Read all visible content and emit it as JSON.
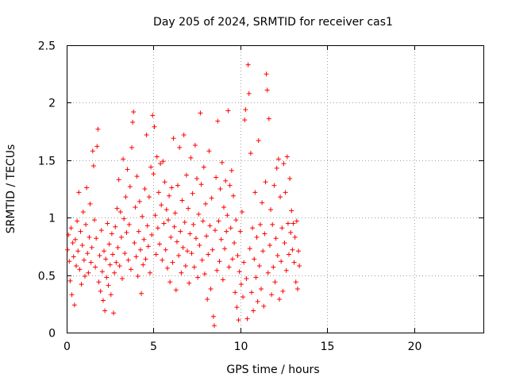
{
  "chart_data": {
    "type": "scatter",
    "title": "Day 205 of 2024, SRMTID for receiver cas1",
    "xlabel": "GPS time / hours",
    "ylabel": "SRMTID / TECUs",
    "xlim": [
      0,
      24
    ],
    "ylim": [
      0,
      2.5
    ],
    "xticks": [
      0,
      5,
      10,
      15,
      20
    ],
    "xtick_labels": [
      "0",
      "5",
      "10",
      "15",
      "20"
    ],
    "yticks": [
      0,
      0.5,
      1,
      1.5,
      2,
      2.5
    ],
    "ytick_labels": [
      "0",
      "0.5",
      "1",
      "1.5",
      "2",
      "2.5"
    ],
    "grid": true,
    "marker": "+",
    "series": [
      {
        "name": "cas1",
        "color": "#ff0000",
        "points": [
          [
            0.05,
            0.72
          ],
          [
            0.1,
            0.85
          ],
          [
            0.15,
            0.62
          ],
          [
            0.2,
            0.45
          ],
          [
            0.25,
            0.91
          ],
          [
            0.3,
            0.33
          ],
          [
            0.35,
            0.78
          ],
          [
            0.4,
            0.66
          ],
          [
            0.45,
            0.24
          ],
          [
            0.5,
            0.81
          ],
          [
            0.55,
            0.58
          ],
          [
            0.6,
            0.97
          ],
          [
            0.65,
            0.71
          ],
          [
            0.7,
            1.22
          ],
          [
            0.75,
            0.55
          ],
          [
            0.8,
            0.88
          ],
          [
            0.85,
            0.42
          ],
          [
            0.9,
            0.76
          ],
          [
            0.95,
            1.05
          ],
          [
            1.0,
            0.63
          ],
          [
            1.05,
            0.49
          ],
          [
            1.1,
            0.94
          ],
          [
            1.15,
            1.26
          ],
          [
            1.2,
            0.69
          ],
          [
            1.25,
            0.52
          ],
          [
            1.3,
            0.83
          ],
          [
            1.35,
            1.12
          ],
          [
            1.4,
            0.61
          ],
          [
            1.45,
            0.74
          ],
          [
            1.5,
            1.58
          ],
          [
            1.55,
            1.45
          ],
          [
            1.6,
            0.98
          ],
          [
            1.65,
            0.57
          ],
          [
            1.7,
            0.82
          ],
          [
            1.75,
            1.62
          ],
          [
            1.8,
            1.77
          ],
          [
            1.85,
            0.44
          ],
          [
            1.9,
            0.67
          ],
          [
            1.95,
            0.36
          ],
          [
            2.0,
            0.89
          ],
          [
            2.05,
            0.53
          ],
          [
            2.1,
            0.28
          ],
          [
            2.15,
            0.71
          ],
          [
            2.2,
            0.19
          ],
          [
            2.25,
            0.64
          ],
          [
            2.3,
            0.48
          ],
          [
            2.35,
            0.95
          ],
          [
            2.4,
            0.41
          ],
          [
            2.45,
            0.77
          ],
          [
            2.5,
            0.59
          ],
          [
            2.55,
            0.33
          ],
          [
            2.6,
            0.86
          ],
          [
            2.65,
            0.68
          ],
          [
            2.7,
            0.17
          ],
          [
            2.75,
            0.52
          ],
          [
            2.8,
            0.92
          ],
          [
            2.85,
            0.61
          ],
          [
            2.9,
            1.08
          ],
          [
            2.95,
            0.74
          ],
          [
            3.0,
            1.33
          ],
          [
            3.05,
            0.58
          ],
          [
            3.1,
            1.05
          ],
          [
            3.15,
            0.83
          ],
          [
            3.2,
            0.47
          ],
          [
            3.25,
            1.51
          ],
          [
            3.3,
            0.99
          ],
          [
            3.35,
            0.69
          ],
          [
            3.4,
            1.18
          ],
          [
            3.45,
            0.87
          ],
          [
            3.5,
            1.42
          ],
          [
            3.55,
            0.63
          ],
          [
            3.6,
            0.94
          ],
          [
            3.65,
            1.27
          ],
          [
            3.7,
            0.55
          ],
          [
            3.75,
            1.61
          ],
          [
            3.8,
            1.83
          ],
          [
            3.85,
            1.92
          ],
          [
            3.9,
            0.78
          ],
          [
            3.95,
            1.09
          ],
          [
            4.0,
            0.66
          ],
          [
            4.05,
            1.36
          ],
          [
            4.1,
            0.49
          ],
          [
            4.15,
            0.88
          ],
          [
            4.2,
            1.14
          ],
          [
            4.25,
            0.72
          ],
          [
            4.3,
            0.34
          ],
          [
            4.35,
            1.01
          ],
          [
            4.4,
            0.59
          ],
          [
            4.45,
            0.81
          ],
          [
            4.5,
            1.25
          ],
          [
            4.55,
            0.64
          ],
          [
            4.6,
            1.72
          ],
          [
            4.65,
            0.93
          ],
          [
            4.7,
            0.75
          ],
          [
            4.75,
            1.18
          ],
          [
            4.8,
            0.52
          ],
          [
            4.85,
            1.44
          ],
          [
            4.9,
            0.85
          ],
          [
            4.95,
            1.89
          ],
          [
            5.0,
            1.38
          ],
          [
            5.05,
            1.79
          ],
          [
            5.1,
            1.02
          ],
          [
            5.15,
            0.68
          ],
          [
            5.2,
            1.53
          ],
          [
            5.25,
            0.91
          ],
          [
            5.3,
            1.22
          ],
          [
            5.35,
            0.77
          ],
          [
            5.4,
            1.47
          ],
          [
            5.45,
            1.11
          ],
          [
            5.5,
            0.63
          ],
          [
            5.55,
            1.49
          ],
          [
            5.6,
            0.95
          ],
          [
            5.65,
            1.31
          ],
          [
            5.7,
            0.72
          ],
          [
            5.75,
            1.07
          ],
          [
            5.8,
            0.56
          ],
          [
            5.85,
            0.98
          ],
          [
            5.9,
            1.19
          ],
          [
            5.95,
            0.44
          ],
          [
            6.0,
            0.83
          ],
          [
            6.05,
            1.26
          ],
          [
            6.1,
            0.61
          ],
          [
            6.15,
            1.69
          ],
          [
            6.2,
            0.92
          ],
          [
            6.25,
            1.04
          ],
          [
            6.3,
            0.37
          ],
          [
            6.35,
            0.79
          ],
          [
            6.4,
            1.28
          ],
          [
            6.45,
            0.67
          ],
          [
            6.5,
            1.61
          ],
          [
            6.55,
            0.88
          ],
          [
            6.6,
            0.52
          ],
          [
            6.65,
            1.15
          ],
          [
            6.7,
            0.74
          ],
          [
            6.75,
            1.72
          ],
          [
            6.8,
            0.96
          ],
          [
            6.85,
            0.58
          ],
          [
            6.9,
            1.37
          ],
          [
            6.95,
            0.71
          ],
          [
            7.0,
            1.08
          ],
          [
            7.05,
            0.43
          ],
          [
            7.1,
            0.86
          ],
          [
            7.15,
            1.52
          ],
          [
            7.2,
            0.69
          ],
          [
            7.25,
            1.21
          ],
          [
            7.3,
            0.94
          ],
          [
            7.35,
            0.57
          ],
          [
            7.4,
            1.63
          ],
          [
            7.45,
            0.82
          ],
          [
            7.5,
            1.34
          ],
          [
            7.55,
            0.48
          ],
          [
            7.6,
            1.03
          ],
          [
            7.65,
            0.76
          ],
          [
            7.7,
            1.91
          ],
          [
            7.75,
            1.29
          ],
          [
            7.8,
            0.63
          ],
          [
            7.85,
            0.97
          ],
          [
            7.9,
            1.44
          ],
          [
            7.95,
            0.51
          ],
          [
            8.0,
            1.12
          ],
          [
            8.05,
            0.84
          ],
          [
            8.1,
            0.29
          ],
          [
            8.15,
            0.68
          ],
          [
            8.2,
            1.58
          ],
          [
            8.25,
            0.93
          ],
          [
            8.3,
            0.38
          ],
          [
            8.35,
            1.17
          ],
          [
            8.4,
            0.72
          ],
          [
            8.45,
            0.14
          ],
          [
            8.5,
            0.06
          ],
          [
            8.55,
            0.89
          ],
          [
            8.6,
            1.35
          ],
          [
            8.65,
            0.54
          ],
          [
            8.7,
            1.84
          ],
          [
            8.75,
            0.97
          ],
          [
            8.8,
            0.62
          ],
          [
            8.85,
            1.25
          ],
          [
            8.9,
            0.81
          ],
          [
            8.95,
            1.48
          ],
          [
            9.0,
            0.46
          ],
          [
            9.05,
            1.09
          ],
          [
            9.1,
            0.73
          ],
          [
            9.15,
            1.32
          ],
          [
            9.2,
            0.88
          ],
          [
            9.25,
            1.02
          ],
          [
            9.3,
            1.93
          ],
          [
            9.35,
            0.57
          ],
          [
            9.4,
            1.28
          ],
          [
            9.45,
            0.91
          ],
          [
            9.5,
            1.41
          ],
          [
            9.55,
            0.64
          ],
          [
            9.6,
            1.19
          ],
          [
            9.65,
            0.78
          ],
          [
            9.7,
            0.35
          ],
          [
            9.75,
            0.98
          ],
          [
            9.8,
            0.22
          ],
          [
            9.85,
            0.67
          ],
          [
            9.9,
            0.11
          ],
          [
            9.95,
            0.53
          ],
          [
            10.0,
            0.88
          ],
          [
            10.05,
            0.42
          ],
          [
            10.1,
            1.05
          ],
          [
            10.15,
            0.31
          ],
          [
            10.2,
            0.61
          ],
          [
            10.25,
            1.85
          ],
          [
            10.3,
            1.94
          ],
          [
            10.35,
            0.47
          ],
          [
            10.4,
            0.12
          ],
          [
            10.45,
            2.33
          ],
          [
            10.5,
            2.08
          ],
          [
            10.55,
            0.73
          ],
          [
            10.6,
            1.56
          ],
          [
            10.65,
            0.35
          ],
          [
            10.7,
            0.91
          ],
          [
            10.75,
            0.19
          ],
          [
            10.8,
            0.64
          ],
          [
            10.85,
            1.22
          ],
          [
            10.9,
            0.48
          ],
          [
            10.95,
            0.83
          ],
          [
            11.0,
            0.27
          ],
          [
            11.05,
            1.67
          ],
          [
            11.1,
            0.58
          ],
          [
            11.15,
            0.94
          ],
          [
            11.2,
            0.38
          ],
          [
            11.25,
            1.13
          ],
          [
            11.3,
            0.71
          ],
          [
            11.35,
            0.23
          ],
          [
            11.4,
            0.86
          ],
          [
            11.45,
            1.31
          ],
          [
            11.5,
            2.25
          ],
          [
            11.55,
            2.11
          ],
          [
            11.6,
            0.52
          ],
          [
            11.65,
            1.86
          ],
          [
            11.7,
            0.76
          ],
          [
            11.75,
            1.07
          ],
          [
            11.8,
            0.33
          ],
          [
            11.85,
            0.94
          ],
          [
            11.9,
            0.57
          ],
          [
            11.95,
            1.28
          ],
          [
            12.0,
            0.44
          ],
          [
            12.05,
            0.82
          ],
          [
            12.1,
            1.43
          ],
          [
            12.15,
            0.67
          ],
          [
            12.2,
            1.51
          ],
          [
            12.25,
            0.29
          ],
          [
            12.3,
            1.18
          ],
          [
            12.35,
            0.62
          ],
          [
            12.4,
            0.91
          ],
          [
            12.45,
            0.36
          ],
          [
            12.5,
            1.47
          ],
          [
            12.55,
            0.78
          ],
          [
            12.6,
            1.22
          ],
          [
            12.65,
            0.54
          ],
          [
            12.7,
            1.53
          ],
          [
            12.75,
            0.95
          ],
          [
            12.8,
            0.68
          ],
          [
            12.85,
            1.34
          ],
          [
            12.9,
            0.87
          ],
          [
            12.95,
            1.06
          ],
          [
            13.0,
            0.72
          ],
          [
            13.05,
            0.95
          ],
          [
            13.1,
            0.61
          ],
          [
            13.15,
            0.83
          ],
          [
            13.2,
            0.44
          ],
          [
            13.25,
            0.97
          ],
          [
            13.3,
            0.38
          ],
          [
            13.35,
            0.71
          ],
          [
            13.4,
            0.58
          ]
        ]
      }
    ]
  }
}
